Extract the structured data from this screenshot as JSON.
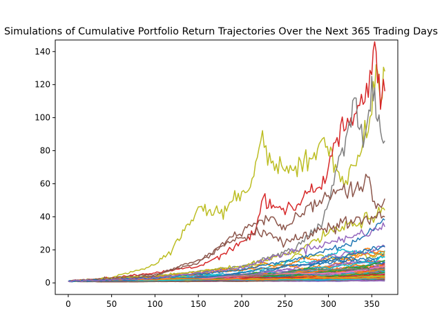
{
  "chart_data": {
    "type": "line",
    "title": "Simulations of Cumulative Portfolio Return Trajectories Over the Next 365 Trading Days",
    "xlabel": "",
    "ylabel": "",
    "xlim": [
      -15,
      380
    ],
    "ylim": [
      -7,
      147
    ],
    "x_ticks": [
      "0",
      "50",
      "100",
      "150",
      "200",
      "250",
      "300",
      "350"
    ],
    "y_ticks": [
      "0",
      "20",
      "40",
      "60",
      "80",
      "100",
      "120",
      "140"
    ],
    "grid": false,
    "legend": "none",
    "num_simulations": 100,
    "x_range": [
      0,
      365
    ],
    "colors": [
      "#1f77b4",
      "#ff7f0e",
      "#2ca02c",
      "#d62728",
      "#9467bd",
      "#8c564b",
      "#e377c2",
      "#7f7f7f",
      "#bcbd22",
      "#17becf"
    ],
    "highlighted_series": [
      {
        "name": "",
        "color": "#bcbd22",
        "x": [
          0,
          50,
          100,
          120,
          150,
          175,
          190,
          210,
          222,
          240,
          260,
          280,
          295,
          310,
          320,
          340,
          350,
          355,
          362,
          365
        ],
        "values": [
          1,
          3,
          11,
          20,
          46,
          42,
          50,
          58,
          86,
          72,
          68,
          75,
          88,
          68,
          62,
          85,
          102,
          132,
          112,
          128
        ]
      },
      {
        "name": "",
        "color": "#d62728",
        "x": [
          0,
          50,
          100,
          150,
          180,
          200,
          215,
          225,
          240,
          260,
          275,
          290,
          300,
          310,
          320,
          330,
          340,
          350,
          355,
          360,
          365
        ],
        "values": [
          1,
          3,
          6,
          10,
          18,
          25,
          30,
          52,
          46,
          44,
          54,
          58,
          70,
          88,
          93,
          102,
          108,
          126,
          140,
          105,
          116
        ]
      },
      {
        "name": "",
        "color": "#7f7f7f",
        "x": [
          0,
          100,
          200,
          260,
          290,
          300,
          310,
          320,
          330,
          340,
          345,
          350,
          355,
          360,
          365
        ],
        "values": [
          1,
          4,
          10,
          20,
          35,
          48,
          70,
          88,
          112,
          82,
          98,
          125,
          100,
          92,
          86
        ]
      },
      {
        "name": "",
        "color": "#8c564b",
        "x": [
          0,
          100,
          150,
          190,
          220,
          235,
          250,
          270,
          290,
          310,
          330,
          345,
          355,
          365
        ],
        "values": [
          1,
          5,
          12,
          28,
          38,
          40,
          32,
          42,
          50,
          56,
          55,
          64,
          45,
          51
        ]
      },
      {
        "name": "",
        "color": "#bcbd22",
        "x": [
          0,
          100,
          200,
          260,
          300,
          330,
          350,
          360,
          365
        ],
        "values": [
          1,
          4,
          10,
          18,
          30,
          36,
          40,
          42,
          44
        ]
      },
      {
        "name": "",
        "color": "#8c564b",
        "x": [
          0,
          100,
          150,
          190,
          225,
          250,
          280,
          310,
          340,
          365
        ],
        "values": [
          1,
          4,
          14,
          26,
          32,
          24,
          30,
          36,
          38,
          40
        ]
      },
      {
        "name": "",
        "color": "#1f77b4",
        "x": [
          0,
          100,
          200,
          260,
          300,
          330,
          350,
          365
        ],
        "values": [
          1,
          3,
          8,
          14,
          20,
          25,
          32,
          38
        ]
      },
      {
        "name": "",
        "color": "#9467bd",
        "x": [
          0,
          100,
          200,
          250,
          300,
          340,
          365
        ],
        "values": [
          1,
          3,
          9,
          18,
          24,
          30,
          34
        ]
      }
    ]
  }
}
